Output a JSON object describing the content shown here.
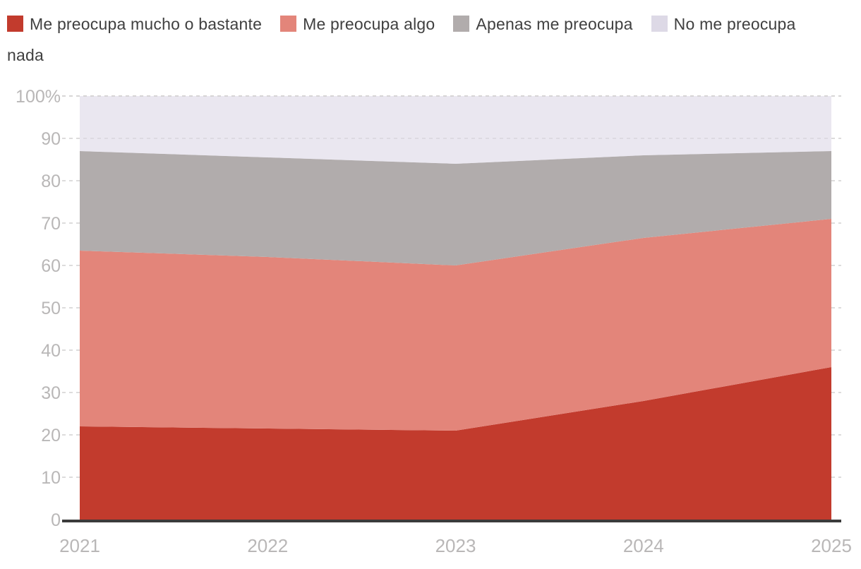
{
  "chart_data": {
    "type": "area",
    "stacked": true,
    "percent_scale": true,
    "x": [
      "2021",
      "2022",
      "2023",
      "2024",
      "2025"
    ],
    "series": [
      {
        "name": "Me preocupa mucho o bastante",
        "color": "#c23b2d",
        "values": [
          22,
          21.5,
          21,
          28,
          36
        ]
      },
      {
        "name": "Me preocupa algo",
        "color": "#e3857a",
        "values": [
          41.5,
          40.5,
          39,
          38.5,
          35
        ]
      },
      {
        "name": "Apenas me preocupa",
        "color": "#b1acac",
        "values": [
          23.5,
          23.5,
          24,
          19.5,
          16
        ]
      },
      {
        "name": "No me preocupa nada",
        "color": "#ddd9e6",
        "values": [
          13,
          14.5,
          16,
          14,
          13
        ]
      }
    ],
    "title": "",
    "xlabel": "",
    "ylabel": "",
    "ylim": [
      0,
      100
    ],
    "yticks": [
      0,
      10,
      20,
      30,
      40,
      50,
      60,
      70,
      80,
      90,
      100
    ],
    "ytick_labels": [
      "0",
      "10",
      "20",
      "30",
      "40",
      "50",
      "60",
      "70",
      "80",
      "90",
      "100%"
    ],
    "grid": "horizontal-dashed",
    "legend_position": "top",
    "colors": {
      "axis_line": "#3b3b3b",
      "grid_line": "#d2d0d0",
      "tick_label": "#b9b7b7",
      "legend_text": "#404040"
    }
  }
}
